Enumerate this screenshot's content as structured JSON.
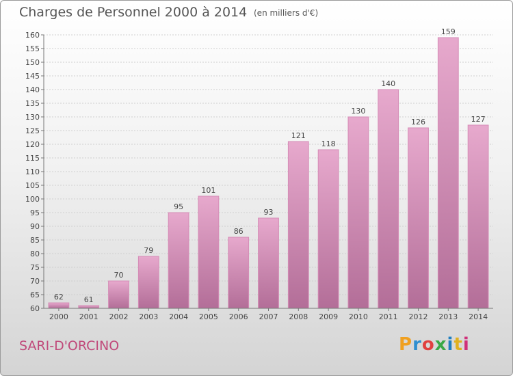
{
  "header": {
    "title": "Charges de Personnel 2000 à 2014",
    "subtitle": "(en milliers d'€)"
  },
  "footer": {
    "commune": "SARI-D'ORCINO",
    "logo_text": "Proxiti"
  },
  "colors": {
    "bar_top": "#e7a9cd",
    "bar_bottom": "#b36e98",
    "bar_edge": "#d58cb6",
    "commune_text": "#c0497a",
    "logo": [
      "#f0a020",
      "#2f8fd0",
      "#e04040",
      "#3aa845",
      "#1f7fc0",
      "#e0b020",
      "#d0307a"
    ]
  },
  "chart_data": {
    "type": "bar",
    "title": "Charges de Personnel 2000 à 2014",
    "subtitle": "(en milliers d'€)",
    "categories": [
      "2000",
      "2001",
      "2002",
      "2003",
      "2004",
      "2005",
      "2006",
      "2007",
      "2008",
      "2009",
      "2010",
      "2011",
      "2012",
      "2013",
      "2014"
    ],
    "values": [
      62,
      61,
      70,
      79,
      95,
      101,
      86,
      93,
      121,
      118,
      130,
      140,
      126,
      159,
      127
    ],
    "ylim": [
      60,
      160
    ],
    "yticks": [
      60,
      65,
      70,
      75,
      80,
      85,
      90,
      95,
      100,
      105,
      110,
      115,
      120,
      125,
      130,
      135,
      140,
      145,
      150,
      155,
      160
    ],
    "grid": true
  }
}
